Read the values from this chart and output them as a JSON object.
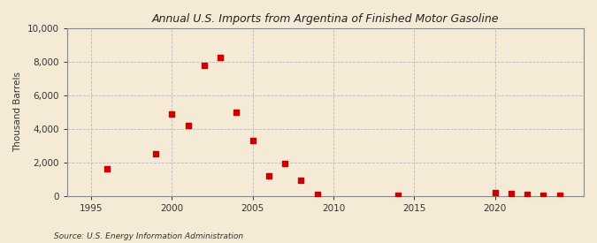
{
  "title": "Annual U.S. Imports from Argentina of Finished Motor Gasoline",
  "ylabel": "Thousand Barrels",
  "source": "Source: U.S. Energy Information Administration",
  "background_color": "#f5ead5",
  "plot_bg_color": "#f5ead5",
  "marker_color": "#cc0000",
  "xlim": [
    1993.5,
    2025.5
  ],
  "ylim": [
    0,
    10000
  ],
  "xticks": [
    1995,
    2000,
    2005,
    2010,
    2015,
    2020
  ],
  "yticks": [
    0,
    2000,
    4000,
    6000,
    8000,
    10000
  ],
  "data": [
    {
      "year": 1996,
      "value": 1600
    },
    {
      "year": 1999,
      "value": 2500
    },
    {
      "year": 2000,
      "value": 4900
    },
    {
      "year": 2001,
      "value": 4200
    },
    {
      "year": 2002,
      "value": 7800
    },
    {
      "year": 2003,
      "value": 8250
    },
    {
      "year": 2004,
      "value": 5000
    },
    {
      "year": 2005,
      "value": 3300
    },
    {
      "year": 2006,
      "value": 1200
    },
    {
      "year": 2007,
      "value": 1950
    },
    {
      "year": 2008,
      "value": 950
    },
    {
      "year": 2009,
      "value": 100
    },
    {
      "year": 2014,
      "value": 50
    },
    {
      "year": 2020,
      "value": 200
    },
    {
      "year": 2021,
      "value": 150
    },
    {
      "year": 2022,
      "value": 75
    },
    {
      "year": 2023,
      "value": 50
    },
    {
      "year": 2024,
      "value": 30
    }
  ]
}
